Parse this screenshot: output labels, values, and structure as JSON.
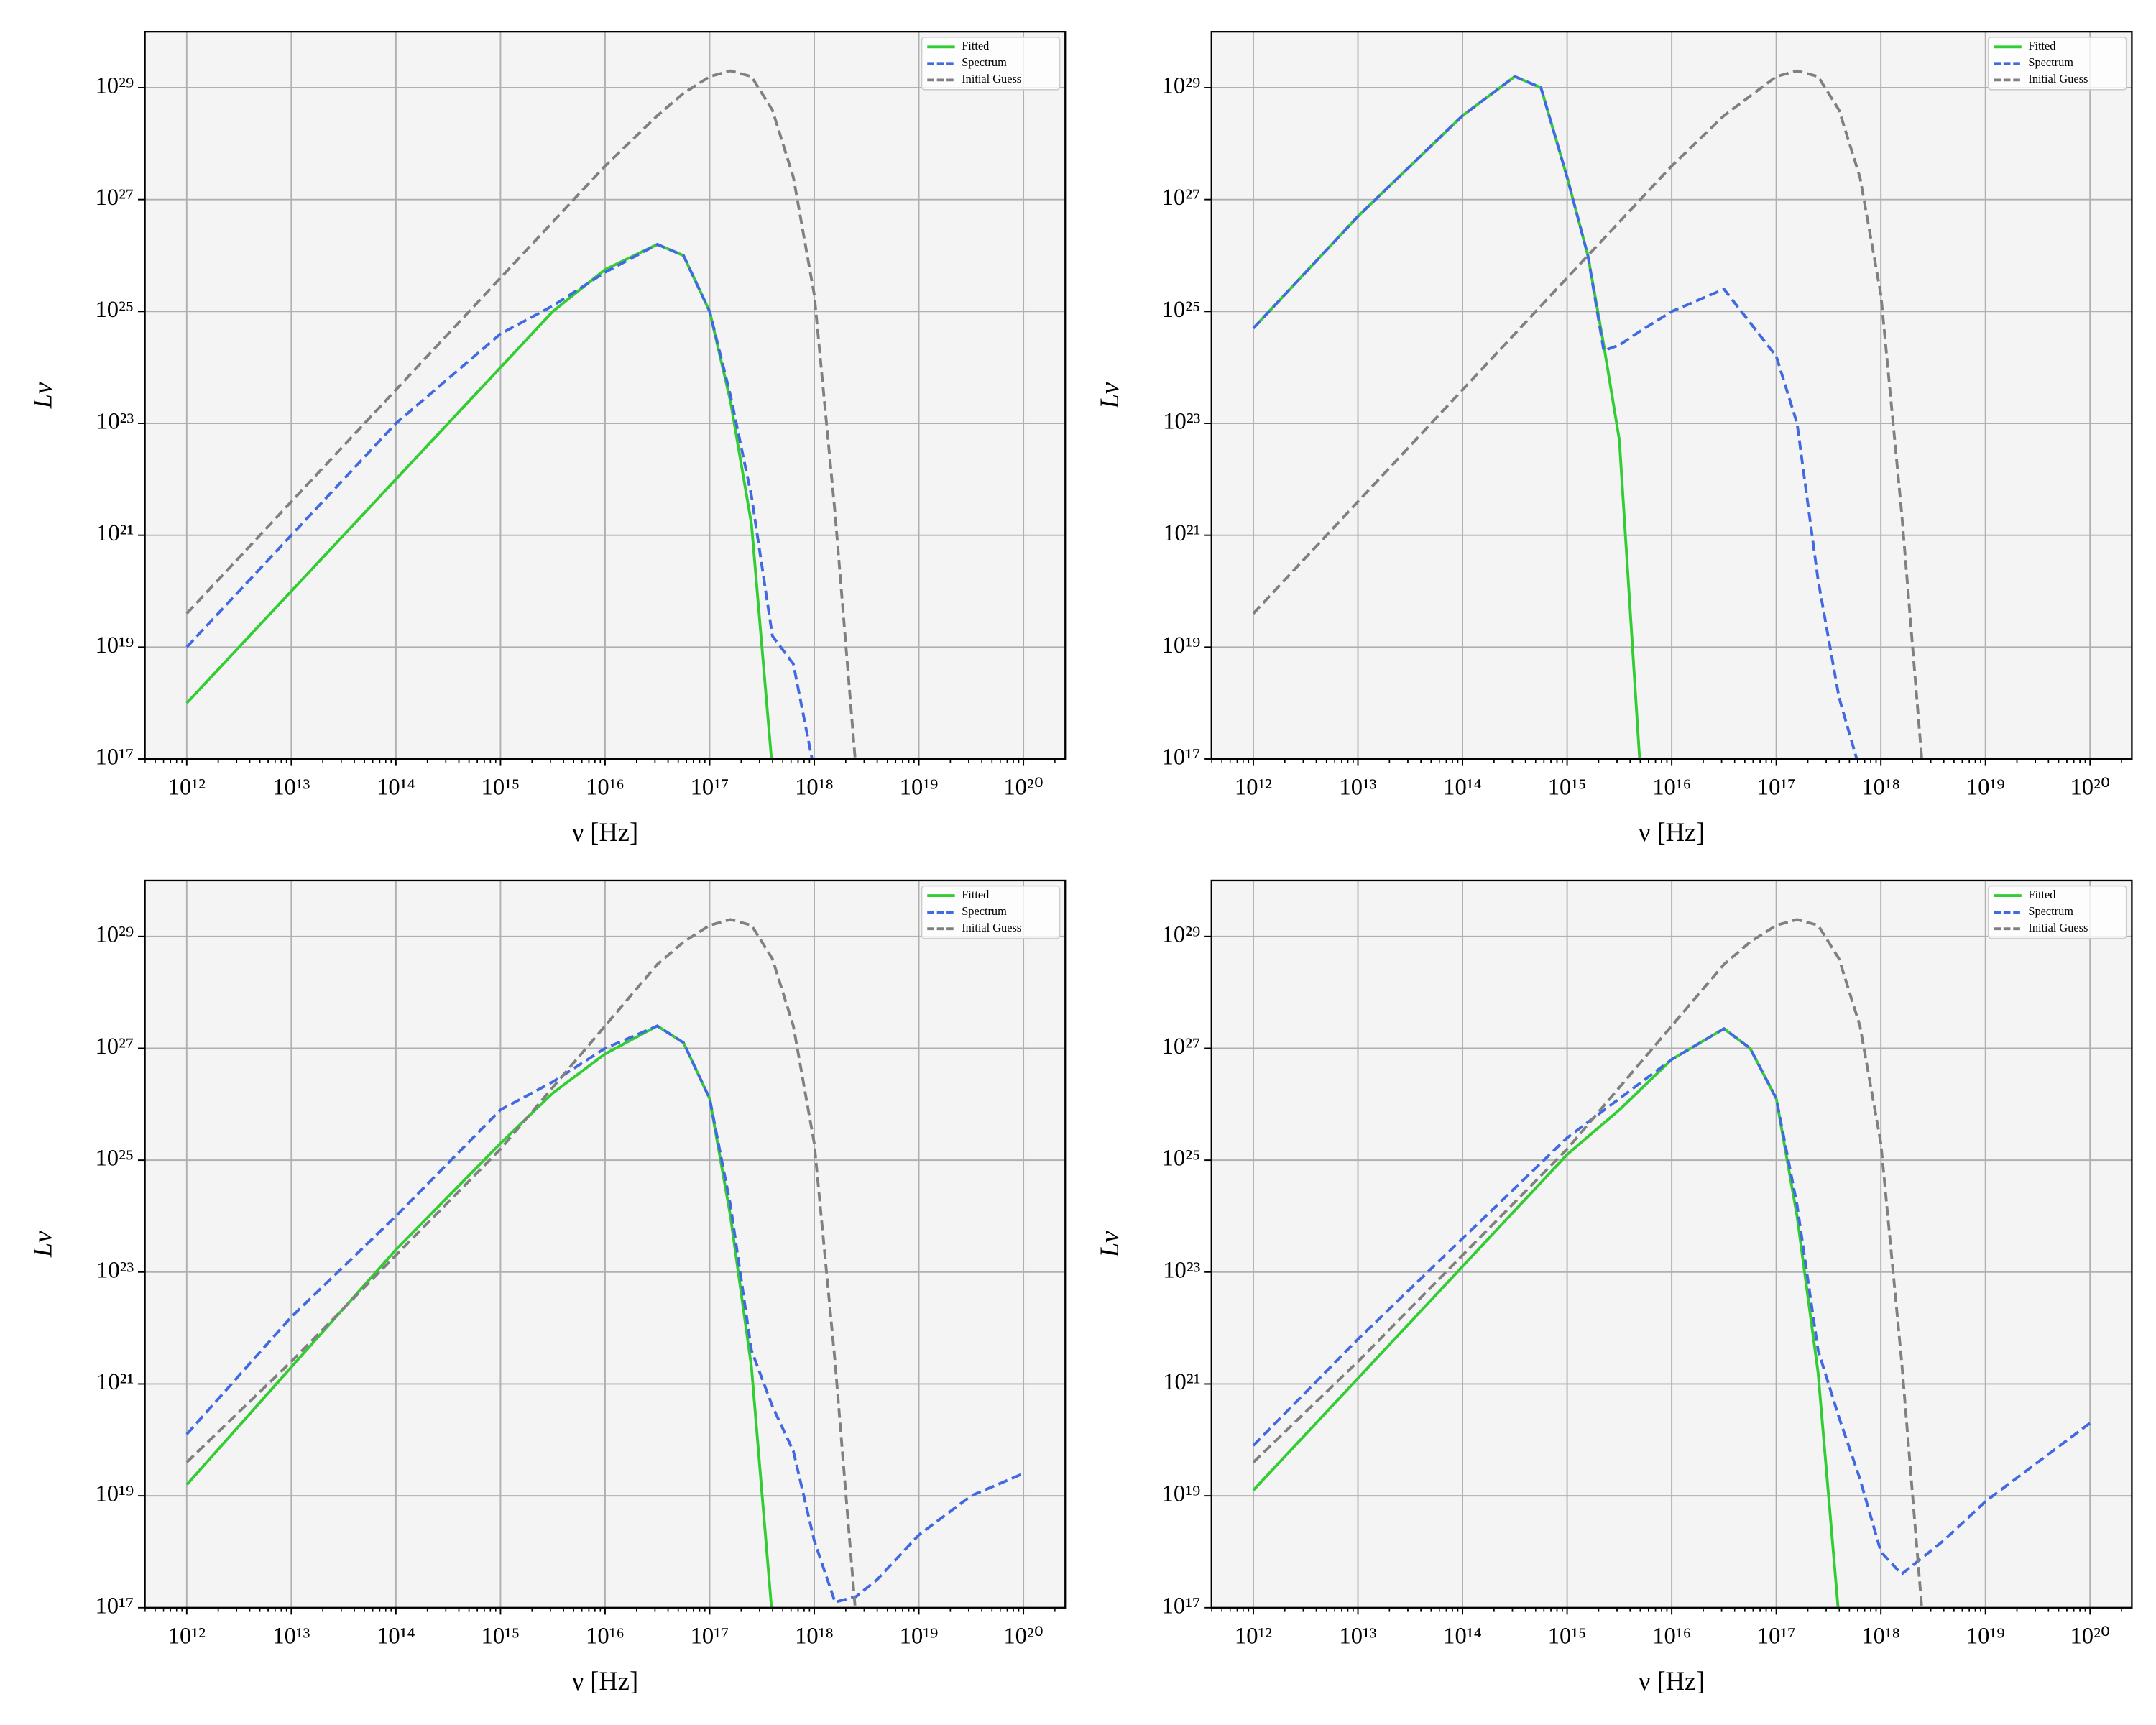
{
  "chart_data": [
    {
      "type": "line",
      "xscale": "log",
      "yscale": "log",
      "grid": true,
      "legend": "upper right",
      "xlabel": "ν [Hz]",
      "ylabel": "Lν",
      "xlim": [
        398000000000.0,
        2.51e+20
      ],
      "ylim": [
        1e+17,
        1e+30
      ],
      "xticks": [
        {
          "value": 1000000000000.0,
          "label": "10¹²"
        },
        {
          "value": 10000000000000.0,
          "label": "10¹³"
        },
        {
          "value": 100000000000000.0,
          "label": "10¹⁴"
        },
        {
          "value": 1000000000000000.0,
          "label": "10¹⁵"
        },
        {
          "value": 1e+16,
          "label": "10¹⁶"
        },
        {
          "value": 1e+17,
          "label": "10¹⁷"
        },
        {
          "value": 1e+18,
          "label": "10¹⁸"
        },
        {
          "value": 1e+19,
          "label": "10¹⁹"
        },
        {
          "value": 1e+20,
          "label": "10²⁰"
        }
      ],
      "yticks": [
        {
          "value": 1e+17,
          "label": "10¹⁷"
        },
        {
          "value": 1e+19,
          "label": "10¹⁹"
        },
        {
          "value": 1e+21,
          "label": "10²¹"
        },
        {
          "value": 1e+23,
          "label": "10²³"
        },
        {
          "value": 1e+25,
          "label": "10²⁵"
        },
        {
          "value": 1e+27,
          "label": "10²⁷"
        },
        {
          "value": 1e+29,
          "label": "10²⁹"
        }
      ],
      "x": [
        1000000000000.0,
        10000000000000.0,
        100000000000000.0,
        1000000000000000.0,
        3160000000000000.0,
        1e+16,
        3.16e+16,
        5.62e+16,
        1e+17,
        1.58e+17,
        2.51e+17,
        3.98e+17,
        6.31e+17,
        1e+18,
        1.58e+18,
        2.51e+18,
        3.98e+18,
        1e+19,
        3.16e+19,
        1e+20
      ],
      "series": [
        {
          "name": "Fitted",
          "color": "#32cd32",
          "linestyle": "solid",
          "values": [
            1e+18,
            1e+20,
            1e+22,
            1e+24,
            1e+25,
            5.62e+25,
            1.58e+26,
            1e+26,
            1e+25,
            2.51e+23,
            1.58e+21,
            6.31e+16,
            null,
            null,
            null,
            null,
            null,
            null,
            null,
            null
          ]
        },
        {
          "name": "Spectrum",
          "color": "#4169e1",
          "linestyle": "dashed",
          "values": [
            1e+19,
            1e+21,
            1e+23,
            3.98e+24,
            1.26e+25,
            5.01e+25,
            1.58e+26,
            1e+26,
            1e+25,
            3.16e+23,
            5.01e+21,
            1.58e+19,
            5.01e+18,
            6.31e+16,
            null,
            null,
            null,
            null,
            null,
            null
          ]
        },
        {
          "name": "Initial Guess",
          "color": "#808080",
          "linestyle": "dashed",
          "values": [
            3.98e+19,
            3.98e+21,
            3.98e+23,
            3.98e+25,
            3.98e+26,
            3.98e+27,
            3.16e+28,
            7.94e+28,
            1.58e+29,
            2e+29,
            1.58e+29,
            3.98e+28,
            2.51e+27,
            2e+25,
            2.51e+21,
            6.31e+16,
            null,
            null,
            null,
            null
          ]
        }
      ]
    },
    {
      "type": "line",
      "xscale": "log",
      "yscale": "log",
      "grid": true,
      "legend": "upper right",
      "xlabel": "ν [Hz]",
      "ylabel": "Lν",
      "xlim": [
        398000000000.0,
        2.51e+20
      ],
      "ylim": [
        1e+17,
        1e+30
      ],
      "xticks": [
        {
          "value": 1000000000000.0,
          "label": "10¹²"
        },
        {
          "value": 10000000000000.0,
          "label": "10¹³"
        },
        {
          "value": 100000000000000.0,
          "label": "10¹⁴"
        },
        {
          "value": 1000000000000000.0,
          "label": "10¹⁵"
        },
        {
          "value": 1e+16,
          "label": "10¹⁶"
        },
        {
          "value": 1e+17,
          "label": "10¹⁷"
        },
        {
          "value": 1e+18,
          "label": "10¹⁸"
        },
        {
          "value": 1e+19,
          "label": "10¹⁹"
        },
        {
          "value": 1e+20,
          "label": "10²⁰"
        }
      ],
      "yticks": [
        {
          "value": 1e+17,
          "label": "10¹⁷"
        },
        {
          "value": 1e+19,
          "label": "10¹⁹"
        },
        {
          "value": 1e+21,
          "label": "10²¹"
        },
        {
          "value": 1e+23,
          "label": "10²³"
        },
        {
          "value": 1e+25,
          "label": "10²⁵"
        },
        {
          "value": 1e+27,
          "label": "10²⁷"
        },
        {
          "value": 1e+29,
          "label": "10²⁹"
        }
      ],
      "x": [
        1000000000000.0,
        10000000000000.0,
        100000000000000.0,
        316000000000000.0,
        562000000000000.0,
        1000000000000000.0,
        1580000000000000.0,
        2240000000000000.0,
        3160000000000000.0,
        5010000000000000.0,
        1e+16,
        3.16e+16,
        1e+17,
        1.58e+17,
        2.51e+17,
        3.98e+17,
        6.31e+17,
        1e+18,
        1.58e+18,
        2.51e+18,
        3.98e+18
      ],
      "series": [
        {
          "name": "Fitted",
          "color": "#32cd32",
          "linestyle": "solid",
          "values": [
            5.01e+24,
            5.01e+26,
            3.16e+28,
            1.58e+29,
            1e+29,
            2.51e+27,
            1e+26,
            2.51e+24,
            5.01e+22,
            6.31e+16,
            null,
            null,
            null,
            null,
            null,
            null,
            null,
            null,
            null,
            null,
            null
          ]
        },
        {
          "name": "Spectrum",
          "color": "#4169e1",
          "linestyle": "dashed",
          "values": [
            5.01e+24,
            5.01e+26,
            3.16e+28,
            1.58e+29,
            1e+29,
            2.51e+27,
            1e+26,
            2e+24,
            2.51e+24,
            4.47e+24,
            1e+25,
            2.51e+25,
            1.58e+24,
            1e+23,
            1.58e+20,
            1.26e+18,
            6.31e+16,
            null,
            null,
            null,
            null
          ]
        },
        {
          "name": "Initial Guess",
          "color": "#808080",
          "linestyle": "dashed",
          "values": [
            3.98e+19,
            3.98e+21,
            3.98e+23,
            3.98e+24,
            1.26e+25,
            3.98e+25,
            1e+26,
            2e+26,
            3.98e+26,
            1e+27,
            3.98e+27,
            3.16e+28,
            1.58e+29,
            2e+29,
            1.58e+29,
            3.98e+28,
            2.51e+27,
            2e+25,
            2.51e+21,
            6.31e+16,
            null
          ]
        }
      ]
    },
    {
      "type": "line",
      "xscale": "log",
      "yscale": "log",
      "grid": true,
      "legend": "upper right",
      "xlabel": "ν [Hz]",
      "ylabel": "Lν",
      "xlim": [
        398000000000.0,
        2.51e+20
      ],
      "ylim": [
        1e+17,
        1e+30
      ],
      "xticks": [
        {
          "value": 1000000000000.0,
          "label": "10¹²"
        },
        {
          "value": 10000000000000.0,
          "label": "10¹³"
        },
        {
          "value": 100000000000000.0,
          "label": "10¹⁴"
        },
        {
          "value": 1000000000000000.0,
          "label": "10¹⁵"
        },
        {
          "value": 1e+16,
          "label": "10¹⁶"
        },
        {
          "value": 1e+17,
          "label": "10¹⁷"
        },
        {
          "value": 1e+18,
          "label": "10¹⁸"
        },
        {
          "value": 1e+19,
          "label": "10¹⁹"
        },
        {
          "value": 1e+20,
          "label": "10²⁰"
        }
      ],
      "yticks": [
        {
          "value": 1e+17,
          "label": "10¹⁷"
        },
        {
          "value": 1e+19,
          "label": "10¹⁹"
        },
        {
          "value": 1e+21,
          "label": "10²¹"
        },
        {
          "value": 1e+23,
          "label": "10²³"
        },
        {
          "value": 1e+25,
          "label": "10²⁵"
        },
        {
          "value": 1e+27,
          "label": "10²⁷"
        },
        {
          "value": 1e+29,
          "label": "10²⁹"
        }
      ],
      "x": [
        1000000000000.0,
        10000000000000.0,
        100000000000000.0,
        1000000000000000.0,
        3160000000000000.0,
        1e+16,
        3.16e+16,
        5.62e+16,
        1e+17,
        1.58e+17,
        2.51e+17,
        3.98e+17,
        6.31e+17,
        1e+18,
        1.58e+18,
        2.51e+18,
        3.98e+18,
        1e+19,
        3.16e+19,
        1e+20
      ],
      "series": [
        {
          "name": "Fitted",
          "color": "#32cd32",
          "linestyle": "solid",
          "values": [
            1.58e+19,
            2e+21,
            2.51e+23,
            2e+25,
            1.58e+26,
            7.94e+26,
            2.51e+27,
            1.26e+27,
            1.26e+26,
            1e+24,
            2e+21,
            6.31e+16,
            null,
            null,
            null,
            null,
            null,
            null,
            null,
            null
          ]
        },
        {
          "name": "Spectrum",
          "color": "#4169e1",
          "linestyle": "dashed",
          "values": [
            1.26e+20,
            1.58e+22,
            1e+24,
            7.94e+25,
            2.51e+26,
            1e+27,
            2.51e+27,
            1.26e+27,
            1.26e+26,
            1.58e+24,
            3.98e+21,
            3.98e+20,
            6.31e+19,
            1.58e+18,
            1.26e+17,
            1.58e+17,
            3.16e+17,
            2e+18,
            1e+19,
            2.51e+19
          ]
        },
        {
          "name": "Initial Guess",
          "color": "#808080",
          "linestyle": "dashed",
          "values": [
            3.98e+19,
            2.51e+21,
            2e+23,
            1.58e+25,
            2e+26,
            2.51e+27,
            3.16e+28,
            7.94e+28,
            1.58e+29,
            2e+29,
            1.58e+29,
            3.98e+28,
            2.51e+27,
            2e+25,
            2.51e+21,
            6.31e+16,
            null,
            null,
            null,
            null
          ]
        }
      ]
    },
    {
      "type": "line",
      "xscale": "log",
      "yscale": "log",
      "grid": true,
      "legend": "upper right",
      "xlabel": "ν [Hz]",
      "ylabel": "Lν",
      "xlim": [
        398000000000.0,
        2.51e+20
      ],
      "ylim": [
        1e+17,
        1e+30
      ],
      "xticks": [
        {
          "value": 1000000000000.0,
          "label": "10¹²"
        },
        {
          "value": 10000000000000.0,
          "label": "10¹³"
        },
        {
          "value": 100000000000000.0,
          "label": "10¹⁴"
        },
        {
          "value": 1000000000000000.0,
          "label": "10¹⁵"
        },
        {
          "value": 1e+16,
          "label": "10¹⁶"
        },
        {
          "value": 1e+17,
          "label": "10¹⁷"
        },
        {
          "value": 1e+18,
          "label": "10¹⁸"
        },
        {
          "value": 1e+19,
          "label": "10¹⁹"
        },
        {
          "value": 1e+20,
          "label": "10²⁰"
        }
      ],
      "yticks": [
        {
          "value": 1e+17,
          "label": "10¹⁷"
        },
        {
          "value": 1e+19,
          "label": "10¹⁹"
        },
        {
          "value": 1e+21,
          "label": "10²¹"
        },
        {
          "value": 1e+23,
          "label": "10²³"
        },
        {
          "value": 1e+25,
          "label": "10²⁵"
        },
        {
          "value": 1e+27,
          "label": "10²⁷"
        },
        {
          "value": 1e+29,
          "label": "10²⁹"
        }
      ],
      "x": [
        1000000000000.0,
        10000000000000.0,
        100000000000000.0,
        1000000000000000.0,
        3160000000000000.0,
        1e+16,
        3.16e+16,
        5.62e+16,
        1e+17,
        1.58e+17,
        2.51e+17,
        3.98e+17,
        6.31e+17,
        1e+18,
        1.58e+18,
        2.51e+18,
        3.98e+18,
        1e+19,
        3.16e+19,
        1e+20
      ],
      "series": [
        {
          "name": "Fitted",
          "color": "#32cd32",
          "linestyle": "solid",
          "values": [
            1.26e+19,
            1.26e+21,
            1.26e+23,
            1.26e+25,
            7.94e+25,
            6.31e+26,
            2.24e+27,
            1e+27,
            1.26e+26,
            1e+24,
            1.58e+21,
            6.31e+16,
            null,
            null,
            null,
            null,
            null,
            null,
            null,
            null
          ]
        },
        {
          "name": "Spectrum",
          "color": "#4169e1",
          "linestyle": "dashed",
          "values": [
            7.94e+19,
            6.31e+21,
            3.98e+23,
            2.51e+25,
            1.26e+26,
            6.31e+26,
            2.24e+27,
            1e+27,
            1.26e+26,
            1.58e+24,
            3.98e+21,
            2.51e+20,
            2e+19,
            1e+18,
            3.98e+17,
            7.94e+17,
            1.58e+18,
            7.94e+18,
            3.98e+19,
            2e+20
          ]
        },
        {
          "name": "Initial Guess",
          "color": "#808080",
          "linestyle": "dashed",
          "values": [
            3.98e+19,
            2.51e+21,
            2e+23,
            1.58e+25,
            2e+26,
            2.51e+27,
            3.16e+28,
            7.94e+28,
            1.58e+29,
            2e+29,
            1.58e+29,
            3.98e+28,
            2.51e+27,
            2e+25,
            2.51e+21,
            6.31e+16,
            null,
            null,
            null,
            null
          ]
        }
      ]
    }
  ]
}
